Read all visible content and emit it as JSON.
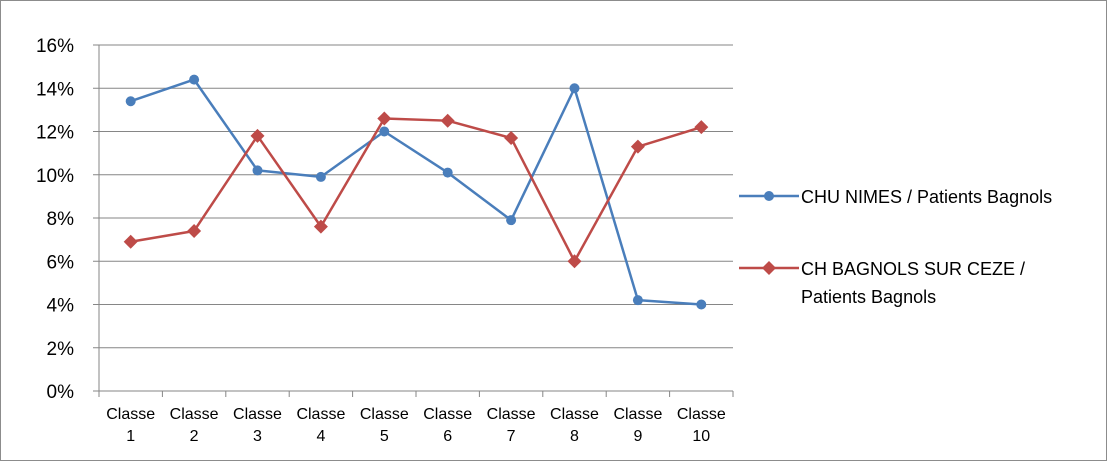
{
  "chart_data": {
    "type": "line",
    "title": "",
    "xlabel": "",
    "ylabel": "",
    "categories": [
      [
        "Classe",
        "1"
      ],
      [
        "Classe",
        "2"
      ],
      [
        "Classe",
        "3"
      ],
      [
        "Classe",
        "4"
      ],
      [
        "Classe",
        "5"
      ],
      [
        "Classe",
        "6"
      ],
      [
        "Classe",
        "7"
      ],
      [
        "Classe",
        "8"
      ],
      [
        "Classe",
        "9"
      ],
      [
        "Classe",
        "10"
      ]
    ],
    "ylim": [
      0,
      16
    ],
    "yticks": [
      0,
      2,
      4,
      6,
      8,
      10,
      12,
      14,
      16
    ],
    "ytick_labels": [
      "0%",
      "2%",
      "4%",
      "6%",
      "8%",
      "10%",
      "12%",
      "14%",
      "16%"
    ],
    "grid": true,
    "legend_position": "right",
    "series": [
      {
        "name_lines": [
          "CHU NIMES / Patients Bagnols"
        ],
        "color": "#4a7ebb",
        "marker": "circle",
        "values": [
          13.4,
          14.4,
          10.2,
          9.9,
          12.0,
          10.1,
          7.9,
          14.0,
          4.2,
          4.0
        ]
      },
      {
        "name_lines": [
          "CH BAGNOLS SUR CEZE /",
          "Patients Bagnols"
        ],
        "color": "#be4b48",
        "marker": "diamond",
        "values": [
          6.9,
          7.4,
          11.8,
          7.6,
          12.6,
          12.5,
          11.7,
          6.0,
          11.3,
          12.2
        ]
      }
    ]
  }
}
